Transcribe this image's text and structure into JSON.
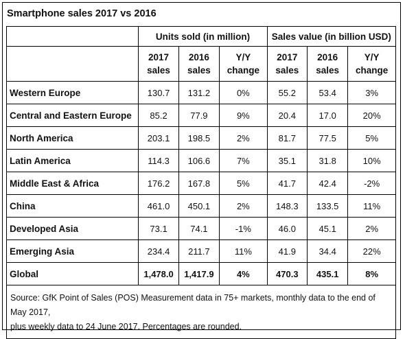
{
  "title": "Smartphone sales 2017 vs 2016",
  "groups": {
    "units": "Units sold (in million)",
    "value": "Sales value (in billion USD)"
  },
  "subheaders": {
    "y2017_l1": "2017",
    "y2017_l2": "sales",
    "y2016_l1": "2016",
    "y2016_l2": "sales",
    "yy_l1": "Y/Y",
    "yy_l2": "change"
  },
  "rows": [
    {
      "region": "Western Europe",
      "u2017": "130.7",
      "u2016": "131.2",
      "uchg": "0%",
      "v2017": "55.2",
      "v2016": "53.4",
      "vchg": "3%"
    },
    {
      "region": "Central and Eastern Europe",
      "u2017": "85.2",
      "u2016": "77.9",
      "uchg": "9%",
      "v2017": "20.4",
      "v2016": "17.0",
      "vchg": "20%"
    },
    {
      "region": "North America",
      "u2017": "203.1",
      "u2016": "198.5",
      "uchg": "2%",
      "v2017": "81.7",
      "v2016": "77.5",
      "vchg": "5%"
    },
    {
      "region": "Latin America",
      "u2017": "114.3",
      "u2016": "106.6",
      "uchg": "7%",
      "v2017": "35.1",
      "v2016": "31.8",
      "vchg": "10%"
    },
    {
      "region": "Middle East & Africa",
      "u2017": "176.2",
      "u2016": "167.8",
      "uchg": "5%",
      "v2017": "41.7",
      "v2016": "42.4",
      "vchg": "-2%"
    },
    {
      "region": "China",
      "u2017": "461.0",
      "u2016": "450.1",
      "uchg": "2%",
      "v2017": "148.3",
      "v2016": "133.5",
      "vchg": "11%"
    },
    {
      "region": "Developed Asia",
      "u2017": "73.1",
      "u2016": "74.1",
      "uchg": "-1%",
      "v2017": "46.0",
      "v2016": "45.1",
      "vchg": "2%"
    },
    {
      "region": "Emerging Asia",
      "u2017": "234.4",
      "u2016": "211.7",
      "uchg": "11%",
      "v2017": "41.9",
      "v2016": "34.4",
      "vchg": "22%"
    },
    {
      "region": "Global",
      "u2017": "1,478.0",
      "u2016": "1,417.9",
      "uchg": "4%",
      "v2017": "470.3",
      "v2016": "435.1",
      "vchg": "8%"
    }
  ],
  "source": {
    "line1": "Source: GfK Point of Sales (POS) Measurement data in 75+ markets, monthly data to the end of May 2017,",
    "line2": "plus weekly data to 24 June 2017. Percentages are rounded."
  }
}
